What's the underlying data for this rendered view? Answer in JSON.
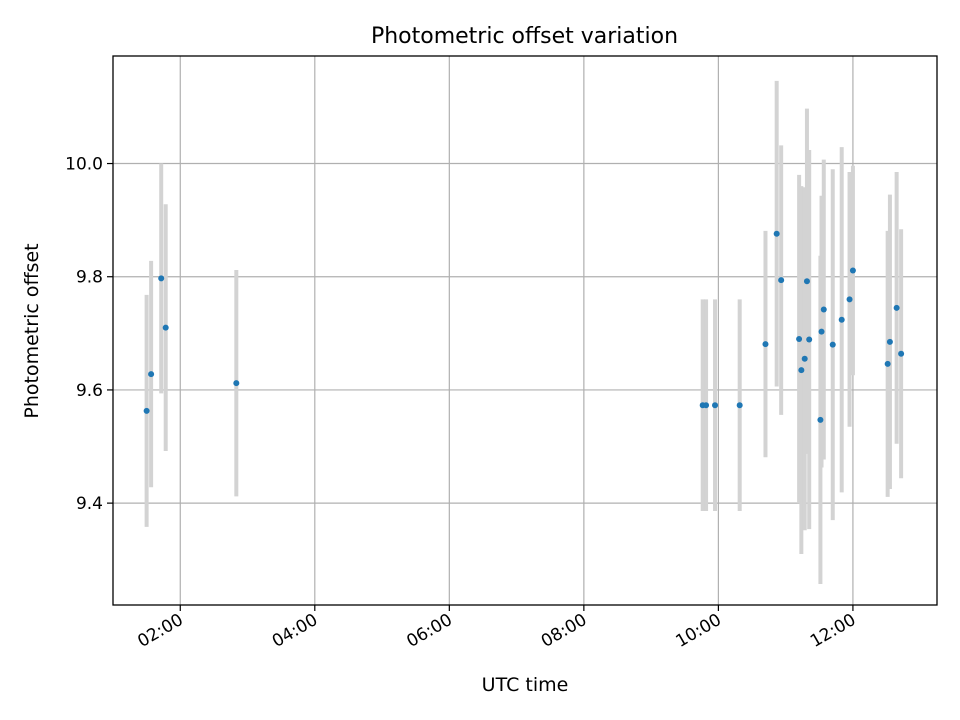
{
  "chart_data": {
    "type": "scatter",
    "title": "Photometric offset variation",
    "xlabel": "UTC time",
    "ylabel": "Photometric offset",
    "xlim": [
      "01:00",
      "13:15"
    ],
    "ylim": [
      9.22,
      10.19
    ],
    "x_ticks": [
      "02:00",
      "04:00",
      "06:00",
      "08:00",
      "10:00",
      "12:00"
    ],
    "y_ticks": [
      9.4,
      9.6,
      9.8,
      10.0
    ],
    "grid": true,
    "colors": {
      "point": "#1f77b4",
      "errorbar": "#d3d3d3"
    },
    "points": [
      {
        "x": "01:30",
        "y": 9.563,
        "yerr": 0.205
      },
      {
        "x": "01:34",
        "y": 9.628,
        "yerr": 0.2
      },
      {
        "x": "01:43",
        "y": 9.797,
        "yerr": 0.203
      },
      {
        "x": "01:47",
        "y": 9.71,
        "yerr": 0.218
      },
      {
        "x": "02:50",
        "y": 9.612,
        "yerr": 0.2
      },
      {
        "x": "09:46",
        "y": 9.573,
        "yerr": 0.187
      },
      {
        "x": "09:49",
        "y": 9.573,
        "yerr": 0.187
      },
      {
        "x": "09:57",
        "y": 9.573,
        "yerr": 0.187
      },
      {
        "x": "10:19",
        "y": 9.573,
        "yerr": 0.187
      },
      {
        "x": "10:42",
        "y": 9.681,
        "yerr": 0.2
      },
      {
        "x": "10:52",
        "y": 9.876,
        "yerr": 0.27
      },
      {
        "x": "10:56",
        "y": 9.794,
        "yerr": 0.238
      },
      {
        "x": "11:12",
        "y": 9.69,
        "yerr": 0.29
      },
      {
        "x": "11:14",
        "y": 9.635,
        "yerr": 0.325
      },
      {
        "x": "11:17",
        "y": 9.655,
        "yerr": 0.303
      },
      {
        "x": "11:19",
        "y": 9.792,
        "yerr": 0.305
      },
      {
        "x": "11:21",
        "y": 9.689,
        "yerr": 0.335
      },
      {
        "x": "11:31",
        "y": 9.547,
        "yerr": 0.29
      },
      {
        "x": "11:32",
        "y": 9.703,
        "yerr": 0.24
      },
      {
        "x": "11:34",
        "y": 9.742,
        "yerr": 0.265
      },
      {
        "x": "11:42",
        "y": 9.68,
        "yerr": 0.31
      },
      {
        "x": "11:50",
        "y": 9.724,
        "yerr": 0.305
      },
      {
        "x": "11:57",
        "y": 9.76,
        "yerr": 0.225
      },
      {
        "x": "12:00",
        "y": 9.811,
        "yerr": 0.185
      },
      {
        "x": "12:31",
        "y": 9.646,
        "yerr": 0.235
      },
      {
        "x": "12:33",
        "y": 9.685,
        "yerr": 0.26
      },
      {
        "x": "12:39",
        "y": 9.745,
        "yerr": 0.24
      },
      {
        "x": "12:43",
        "y": 9.664,
        "yerr": 0.22
      }
    ]
  }
}
